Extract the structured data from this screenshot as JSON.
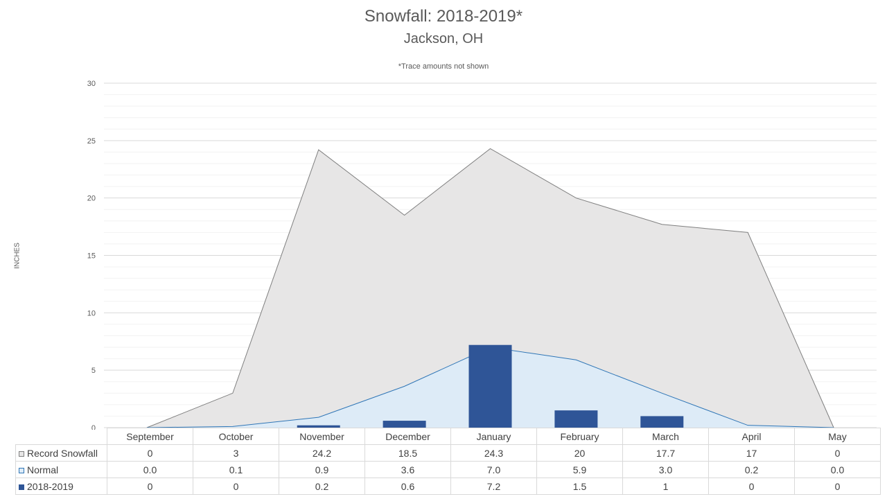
{
  "chart_data": {
    "type": "area",
    "title": "Snowfall: 2018-2019*",
    "subtitle": "Jackson, OH",
    "note": "*Trace amounts not shown",
    "xlabel": "",
    "ylabel": "INCHES",
    "ylim": [
      0,
      30
    ],
    "yticks": [
      0,
      5,
      10,
      15,
      20,
      25,
      30
    ],
    "minor_step": 1,
    "grid": true,
    "legend": "data-table",
    "categories": [
      "September",
      "October",
      "November",
      "December",
      "January",
      "February",
      "March",
      "April",
      "May"
    ],
    "series": [
      {
        "name": "Record Snowfall",
        "type": "area",
        "color": "#e7e6e6",
        "line_color": "#7f7f7f",
        "values": [
          0,
          3,
          24.2,
          18.5,
          24.3,
          20,
          17.7,
          17,
          0
        ],
        "labels": [
          "0",
          "3",
          "24.2",
          "18.5",
          "24.3",
          "20",
          "17.7",
          "17",
          "0"
        ]
      },
      {
        "name": "Normal",
        "type": "area",
        "color": "#ddebf7",
        "line_color": "#2e75b6",
        "values": [
          0.0,
          0.1,
          0.9,
          3.6,
          7.0,
          5.9,
          3.0,
          0.2,
          0.0
        ],
        "labels": [
          "0.0",
          "0.1",
          "0.9",
          "3.6",
          "7.0",
          "5.9",
          "3.0",
          "0.2",
          "0.0"
        ]
      },
      {
        "name": "2018-2019",
        "type": "bar",
        "color": "#2f5597",
        "values": [
          0,
          0,
          0.2,
          0.6,
          7.2,
          1.5,
          1,
          0,
          0
        ],
        "labels": [
          "0",
          "0",
          "0.2",
          "0.6",
          "7.2",
          "1.5",
          "1",
          "0",
          "0"
        ]
      }
    ]
  }
}
